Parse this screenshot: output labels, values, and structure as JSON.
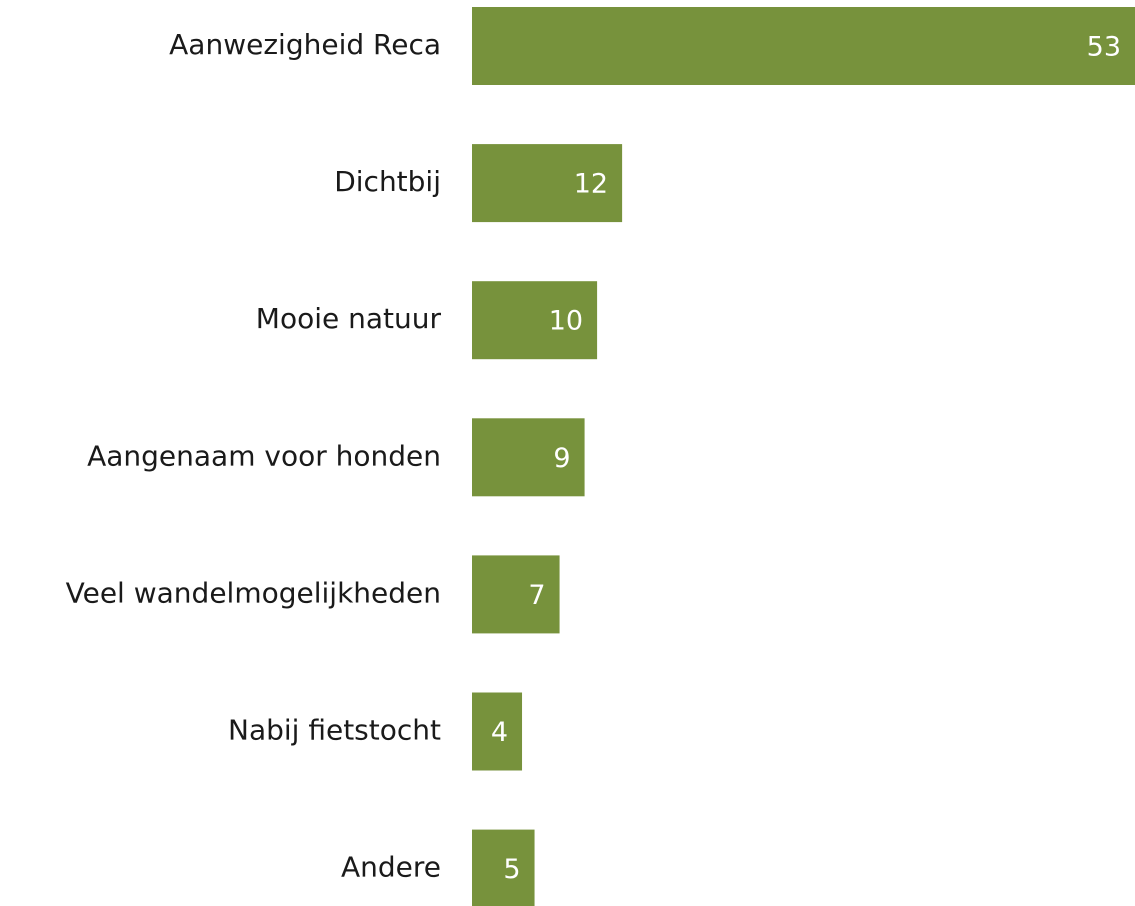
{
  "chart_data": {
    "type": "bar",
    "orientation": "horizontal",
    "categories": [
      "Aanwezigheid Reca",
      "Dichtbij",
      "Mooie natuur",
      "Aangenaam voor honden",
      "Veel wandelmogelijkheden",
      "Nabij fietstocht",
      "Andere"
    ],
    "values": [
      53,
      12,
      10,
      9,
      7,
      4,
      5
    ],
    "color": "#77923c",
    "xlim": [
      0,
      53
    ]
  }
}
